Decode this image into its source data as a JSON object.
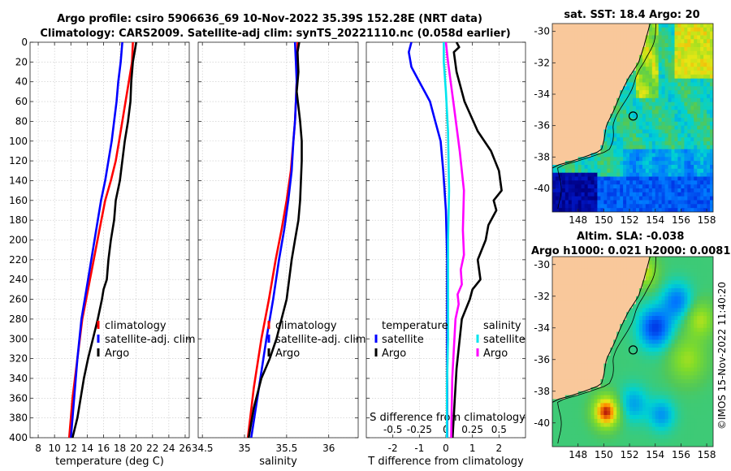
{
  "title_line1": "Argo profile: csiro 5906636_69 10-Nov-2022 35.39S 152.28E (NRT data)",
  "title_line2": "Climatology: CARS2009. Satellite-adj clim: synTS_20221110.nc (0.058d earlier)",
  "sst_title": "sat. SST: 18.4 Argo: 20",
  "sla_title1": "Altim. SLA: -0.038",
  "sla_title2": "Argo h1000: 0.021 h2000: 0.0081",
  "side_text": "©IMOS 15-Nov-2022 11:40:20",
  "colors": {
    "clim": "#ff0000",
    "sat": "#0000ff",
    "argo": "#000000",
    "sat_s": "#00e5ee",
    "argo_s": "#ff00ff",
    "land": "#f9c89b"
  },
  "chart_data": [
    {
      "type": "line",
      "name": "temperature",
      "xlabel": "temperature (deg C)",
      "xlim": [
        7,
        26.5
      ],
      "xticks": [
        8,
        10,
        12,
        14,
        16,
        18,
        20,
        22,
        24,
        26
      ],
      "ylim": [
        0,
        400
      ],
      "yticks": [
        0,
        20,
        40,
        60,
        80,
        100,
        120,
        140,
        160,
        180,
        200,
        220,
        240,
        260,
        280,
        300,
        320,
        340,
        360,
        380,
        400
      ],
      "legend": [
        "climatology",
        "satellite-adj. clim",
        "Argo"
      ],
      "series": [
        {
          "name": "climatology",
          "color": "#ff0000",
          "x": [
            19.6,
            19.5,
            19.1,
            18.7,
            18.3,
            17.9,
            17.5,
            16.9,
            16.2,
            15.5,
            14.8,
            14.1,
            13.4,
            12.8,
            12.2,
            11.8
          ],
          "y": [
            0,
            20,
            40,
            60,
            80,
            100,
            120,
            140,
            160,
            190,
            220,
            250,
            280,
            320,
            360,
            400
          ]
        },
        {
          "name": "satellite-adj. clim",
          "color": "#0000ff",
          "x": [
            18.3,
            18.1,
            17.8,
            17.6,
            17.3,
            17.0,
            16.6,
            16.2,
            15.7,
            15.1,
            14.5,
            13.9,
            13.3,
            12.8,
            12.4,
            12.0
          ],
          "y": [
            0,
            20,
            40,
            60,
            80,
            100,
            120,
            140,
            160,
            190,
            220,
            250,
            280,
            320,
            360,
            400
          ]
        },
        {
          "name": "Argo",
          "color": "#000000",
          "x": [
            20.0,
            19.9,
            19.6,
            19.4,
            19.3,
            19.0,
            18.6,
            18.3,
            18.0,
            17.5,
            17.4,
            17.3,
            16.9,
            16.6,
            16.4,
            16.0,
            15.8,
            15.3,
            14.7,
            14.1,
            13.6,
            13.2,
            12.8,
            12.2
          ],
          "y": [
            0,
            5,
            20,
            40,
            60,
            80,
            100,
            120,
            140,
            160,
            170,
            180,
            200,
            220,
            240,
            250,
            260,
            280,
            300,
            320,
            340,
            360,
            380,
            400
          ]
        }
      ]
    },
    {
      "type": "line",
      "name": "salinity",
      "xlabel": "salinity",
      "xlim": [
        34.45,
        36.35
      ],
      "xticks": [
        34.5,
        35,
        35.5,
        36
      ],
      "ylim": [
        0,
        400
      ],
      "legend": [
        "climatology",
        "satellite-adj. clim",
        "Argo"
      ],
      "series": [
        {
          "name": "climatology",
          "color": "#ff0000",
          "x": [
            35.63,
            35.63,
            35.62,
            35.61,
            35.6,
            35.58,
            35.55,
            35.5,
            35.44,
            35.37,
            35.29,
            35.2,
            35.11,
            35.04
          ],
          "y": [
            0,
            20,
            40,
            60,
            80,
            100,
            130,
            160,
            190,
            220,
            260,
            300,
            350,
            400
          ]
        },
        {
          "name": "satellite-adj. clim",
          "color": "#0000ff",
          "x": [
            35.6,
            35.61,
            35.62,
            35.61,
            35.6,
            35.58,
            35.56,
            35.52,
            35.47,
            35.41,
            35.34,
            35.26,
            35.17,
            35.08
          ],
          "y": [
            0,
            20,
            40,
            60,
            80,
            100,
            130,
            160,
            190,
            220,
            260,
            300,
            350,
            400
          ]
        },
        {
          "name": "Argo",
          "color": "#000000",
          "x": [
            35.65,
            35.63,
            35.64,
            35.62,
            35.66,
            35.68,
            35.68,
            35.67,
            35.66,
            35.64,
            35.6,
            35.56,
            35.53,
            35.5,
            35.44,
            35.38,
            35.3,
            35.2,
            35.11,
            35.05
          ],
          "y": [
            0,
            10,
            30,
            50,
            80,
            100,
            120,
            140,
            160,
            180,
            200,
            220,
            240,
            260,
            280,
            300,
            320,
            340,
            370,
            400
          ]
        }
      ]
    },
    {
      "type": "line",
      "name": "difference",
      "xlabel": "T difference from climatology",
      "x2label": "S difference from climatology",
      "xlim": [
        -3,
        3
      ],
      "xticks": [
        -2,
        -1,
        0,
        1,
        2
      ],
      "s_xlim": [
        -0.75,
        0.75
      ],
      "s_xticks": [
        -0.5,
        -0.25,
        0,
        0.25,
        0.5
      ],
      "s_xticklabels": [
        "-0.5",
        "-0.25",
        "0",
        "0.25",
        "0.5"
      ],
      "ylim": [
        0,
        400
      ],
      "legend_t_title": "temperature",
      "legend_s_title": "salinity",
      "legend_t": [
        "satellite",
        "Argo"
      ],
      "legend_s": [
        "satellite",
        "Argo"
      ],
      "series": [
        {
          "name": "T satellite",
          "color": "#0000ff",
          "x": [
            -1.3,
            -1.4,
            -1.3,
            -1.0,
            -0.8,
            -0.6,
            -0.4,
            -0.2,
            -0.1,
            0.0,
            0.05,
            0.05,
            0.05,
            0.05
          ],
          "y": [
            0,
            10,
            25,
            40,
            50,
            60,
            80,
            100,
            130,
            170,
            220,
            280,
            340,
            400
          ]
        },
        {
          "name": "T Argo",
          "color": "#000000",
          "x": [
            0.4,
            0.5,
            0.3,
            0.4,
            0.7,
            1.2,
            1.7,
            2.0,
            2.1,
            1.8,
            1.9,
            1.6,
            1.5,
            1.2,
            1.3,
            1.0,
            0.9,
            0.6,
            0.4,
            0.25
          ],
          "y": [
            0,
            5,
            10,
            30,
            60,
            90,
            110,
            130,
            150,
            160,
            170,
            185,
            200,
            220,
            240,
            250,
            260,
            280,
            330,
            400
          ]
        },
        {
          "name": "S satellite",
          "color": "#00e5ee",
          "x": [
            -0.02,
            -0.02,
            0.0,
            0.02,
            0.03,
            0.02,
            0.02,
            0.02,
            0.01,
            0.01
          ],
          "y": [
            0,
            20,
            50,
            90,
            150,
            200,
            250,
            300,
            350,
            400
          ]
        },
        {
          "name": "S Argo",
          "color": "#ff00ff",
          "x": [
            0.0,
            0.02,
            0.07,
            0.13,
            0.17,
            0.16,
            0.17,
            0.14,
            0.15,
            0.11,
            0.12,
            0.09,
            0.06,
            0.05
          ],
          "y": [
            0,
            20,
            60,
            110,
            150,
            190,
            215,
            230,
            245,
            255,
            265,
            280,
            340,
            400
          ]
        }
      ]
    },
    {
      "type": "heatmap",
      "name": "sat_sst_map",
      "title": "sat. SST: 18.4 Argo: 20",
      "xlim": [
        146,
        158.5
      ],
      "ylim": [
        -41.5,
        -29.5
      ],
      "xticks": [
        148,
        150,
        152,
        154,
        156,
        158
      ],
      "yticks": [
        -30,
        -32,
        -34,
        -36,
        -38,
        -40
      ],
      "argo_position": [
        152.28,
        -35.39
      ]
    },
    {
      "type": "heatmap",
      "name": "sla_map",
      "title": "Altim. SLA: -0.038",
      "xlim": [
        146,
        158.5
      ],
      "ylim": [
        -41.5,
        -29.5
      ],
      "xticks": [
        148,
        150,
        152,
        154,
        156,
        158
      ],
      "yticks": [
        -30,
        -32,
        -34,
        -36,
        -38,
        -40
      ],
      "argo_position": [
        152.28,
        -35.39
      ]
    }
  ]
}
